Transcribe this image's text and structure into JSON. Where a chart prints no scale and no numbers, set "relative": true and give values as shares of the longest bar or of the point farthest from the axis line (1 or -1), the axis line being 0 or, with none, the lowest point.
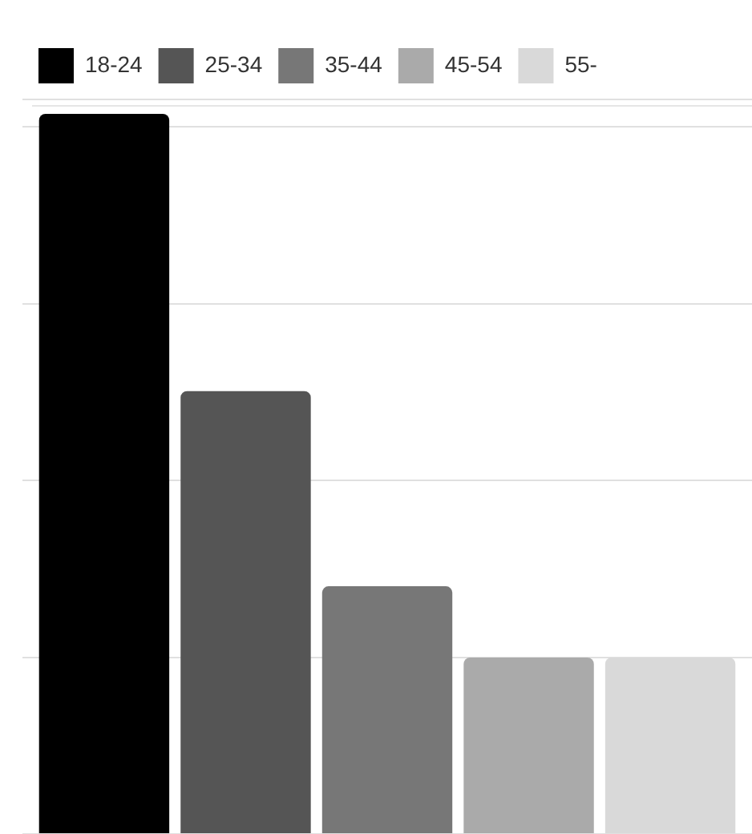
{
  "chart_data": {
    "type": "bar",
    "relative": true,
    "categories": [
      null
    ],
    "series": [
      {
        "name": "18-24",
        "color": "#000000",
        "values": [
          1
        ]
      },
      {
        "name": "25-34",
        "color": "#555555",
        "values": [
          0.615
        ]
      },
      {
        "name": "35-44",
        "color": "#777777",
        "values": [
          0.344
        ]
      },
      {
        "name": "45-54",
        "color": "#aaaaaa",
        "values": [
          0.245
        ]
      },
      {
        "name": "55-",
        "color": "#d9d9d9",
        "values": [
          0.245
        ]
      }
    ],
    "grid": "y",
    "legend": "top left"
  }
}
